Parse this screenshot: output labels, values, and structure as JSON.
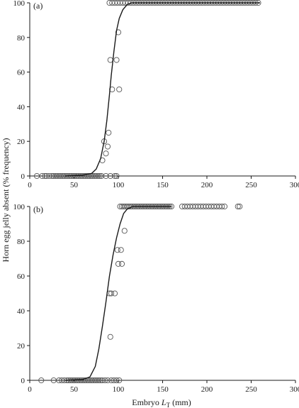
{
  "figure": {
    "ylabel": "Horn egg jelly absent (% frequency)",
    "xlabel_main": "Embryo ",
    "xlabel_italic": "L",
    "xlabel_sub": "T",
    "xlabel_unit": " (mm)"
  },
  "chart_data": [
    {
      "type": "scatter",
      "panel_label": "(a)",
      "xlim": [
        0,
        300
      ],
      "ylim": [
        0,
        100
      ],
      "x_ticks": [
        0,
        50,
        100,
        150,
        200,
        250,
        300
      ],
      "y_ticks": [
        0,
        20,
        40,
        60,
        80,
        100
      ],
      "x_tick_labels": [
        "0",
        "50",
        "100",
        "150",
        "200",
        "250",
        "300"
      ],
      "y_tick_labels": [
        "0",
        "20",
        "40",
        "60",
        "80",
        "100"
      ],
      "grid": false,
      "marker": "open-circle",
      "colors": {
        "marker_edge": "#555555",
        "curve": "#1a1a1a",
        "axis": "#1a1a1a"
      },
      "points": [
        [
          8,
          0
        ],
        [
          14,
          0
        ],
        [
          17,
          0
        ],
        [
          19,
          0
        ],
        [
          22,
          0
        ],
        [
          25,
          0
        ],
        [
          27,
          0
        ],
        [
          29,
          0
        ],
        [
          31,
          0
        ],
        [
          33,
          0
        ],
        [
          35,
          0
        ],
        [
          37,
          0
        ],
        [
          39,
          0
        ],
        [
          41,
          0
        ],
        [
          43,
          0
        ],
        [
          45,
          0
        ],
        [
          47,
          0
        ],
        [
          49,
          0
        ],
        [
          51,
          0
        ],
        [
          53,
          0
        ],
        [
          55,
          0
        ],
        [
          57,
          0
        ],
        [
          59,
          0
        ],
        [
          61,
          0
        ],
        [
          63,
          0
        ],
        [
          65,
          0
        ],
        [
          67,
          0
        ],
        [
          69,
          0
        ],
        [
          71,
          0
        ],
        [
          73,
          0
        ],
        [
          75,
          0
        ],
        [
          77,
          0
        ],
        [
          79,
          0
        ],
        [
          81,
          0
        ],
        [
          86,
          0
        ],
        [
          91,
          0
        ],
        [
          96,
          0
        ],
        [
          98,
          0
        ],
        [
          82,
          9
        ],
        [
          86,
          13
        ],
        [
          84,
          20
        ],
        [
          88,
          17
        ],
        [
          89,
          25
        ],
        [
          91,
          67
        ],
        [
          93,
          50
        ],
        [
          98,
          67
        ],
        [
          101,
          50
        ],
        [
          100,
          83
        ],
        [
          90,
          100
        ],
        [
          93,
          100
        ],
        [
          96,
          100
        ],
        [
          99,
          100
        ],
        [
          102,
          100
        ],
        [
          105,
          100
        ],
        [
          108,
          100
        ],
        [
          111,
          100
        ],
        [
          114,
          100
        ],
        [
          117,
          100
        ],
        [
          120,
          100
        ],
        [
          123,
          100
        ],
        [
          126,
          100
        ],
        [
          129,
          100
        ],
        [
          132,
          100
        ],
        [
          135,
          100
        ],
        [
          138,
          100
        ],
        [
          141,
          100
        ],
        [
          144,
          100
        ],
        [
          147,
          100
        ],
        [
          150,
          100
        ],
        [
          153,
          100
        ],
        [
          156,
          100
        ],
        [
          159,
          100
        ],
        [
          162,
          100
        ],
        [
          165,
          100
        ],
        [
          168,
          100
        ],
        [
          171,
          100
        ],
        [
          174,
          100
        ],
        [
          177,
          100
        ],
        [
          180,
          100
        ],
        [
          183,
          100
        ],
        [
          186,
          100
        ],
        [
          189,
          100
        ],
        [
          192,
          100
        ],
        [
          195,
          100
        ],
        [
          198,
          100
        ],
        [
          201,
          100
        ],
        [
          204,
          100
        ],
        [
          207,
          100
        ],
        [
          210,
          100
        ],
        [
          213,
          100
        ],
        [
          216,
          100
        ],
        [
          219,
          100
        ],
        [
          222,
          100
        ],
        [
          225,
          100
        ],
        [
          228,
          100
        ],
        [
          231,
          100
        ],
        [
          234,
          100
        ],
        [
          237,
          100
        ],
        [
          240,
          100
        ],
        [
          243,
          100
        ],
        [
          246,
          100
        ],
        [
          249,
          100
        ],
        [
          252,
          100
        ],
        [
          255,
          100
        ],
        [
          258,
          100
        ]
      ],
      "curve": [
        [
          40,
          0
        ],
        [
          60,
          0.5
        ],
        [
          70,
          1.5
        ],
        [
          75,
          4
        ],
        [
          80,
          10
        ],
        [
          84,
          20
        ],
        [
          87,
          32
        ],
        [
          90,
          47
        ],
        [
          92,
          58
        ],
        [
          95,
          72
        ],
        [
          98,
          84
        ],
        [
          101,
          91
        ],
        [
          105,
          96
        ],
        [
          110,
          99
        ],
        [
          115,
          100
        ],
        [
          260,
          100
        ]
      ]
    },
    {
      "type": "scatter",
      "panel_label": "(b)",
      "xlim": [
        0,
        300
      ],
      "ylim": [
        0,
        100
      ],
      "x_ticks": [
        0,
        50,
        100,
        150,
        200,
        250,
        300
      ],
      "y_ticks": [
        0,
        20,
        40,
        60,
        80,
        100
      ],
      "x_tick_labels": [
        "0",
        "50",
        "100",
        "150",
        "200",
        "250",
        "300"
      ],
      "y_tick_labels": [
        "0",
        "20",
        "40",
        "60",
        "80",
        "100"
      ],
      "grid": false,
      "marker": "open-circle",
      "colors": {
        "marker_edge": "#555555",
        "curve": "#1a1a1a",
        "axis": "#1a1a1a"
      },
      "points": [
        [
          13,
          0
        ],
        [
          27,
          0
        ],
        [
          33,
          0
        ],
        [
          36,
          0
        ],
        [
          39,
          0
        ],
        [
          42,
          0
        ],
        [
          44,
          0
        ],
        [
          46,
          0
        ],
        [
          48,
          0
        ],
        [
          50,
          0
        ],
        [
          52,
          0
        ],
        [
          54,
          0
        ],
        [
          56,
          0
        ],
        [
          58,
          0
        ],
        [
          60,
          0
        ],
        [
          62,
          0
        ],
        [
          64,
          0
        ],
        [
          66,
          0
        ],
        [
          68,
          0
        ],
        [
          70,
          0
        ],
        [
          72,
          0
        ],
        [
          74,
          0
        ],
        [
          76,
          0
        ],
        [
          78,
          0
        ],
        [
          80,
          0
        ],
        [
          82,
          0
        ],
        [
          85,
          0
        ],
        [
          88,
          0
        ],
        [
          92,
          0
        ],
        [
          95,
          0
        ],
        [
          98,
          0
        ],
        [
          101,
          0
        ],
        [
          91,
          25
        ],
        [
          90,
          50
        ],
        [
          92,
          50
        ],
        [
          96,
          50
        ],
        [
          99,
          75
        ],
        [
          100,
          67
        ],
        [
          103,
          75
        ],
        [
          104,
          67
        ],
        [
          107,
          86
        ],
        [
          102,
          100
        ],
        [
          104,
          100
        ],
        [
          106,
          100
        ],
        [
          108,
          100
        ],
        [
          110,
          100
        ],
        [
          112,
          100
        ],
        [
          114,
          100
        ],
        [
          116,
          100
        ],
        [
          118,
          100
        ],
        [
          120,
          100
        ],
        [
          122,
          100
        ],
        [
          124,
          100
        ],
        [
          126,
          100
        ],
        [
          128,
          100
        ],
        [
          130,
          100
        ],
        [
          132,
          100
        ],
        [
          134,
          100
        ],
        [
          136,
          100
        ],
        [
          138,
          100
        ],
        [
          140,
          100
        ],
        [
          142,
          100
        ],
        [
          144,
          100
        ],
        [
          146,
          100
        ],
        [
          148,
          100
        ],
        [
          150,
          100
        ],
        [
          152,
          100
        ],
        [
          154,
          100
        ],
        [
          156,
          100
        ],
        [
          158,
          100
        ],
        [
          160,
          100
        ],
        [
          172,
          100
        ],
        [
          175,
          100
        ],
        [
          178,
          100
        ],
        [
          181,
          100
        ],
        [
          184,
          100
        ],
        [
          187,
          100
        ],
        [
          190,
          100
        ],
        [
          193,
          100
        ],
        [
          196,
          100
        ],
        [
          199,
          100
        ],
        [
          202,
          100
        ],
        [
          205,
          100
        ],
        [
          208,
          100
        ],
        [
          211,
          100
        ],
        [
          214,
          100
        ],
        [
          217,
          100
        ],
        [
          220,
          100
        ],
        [
          235,
          100
        ],
        [
          237,
          100
        ]
      ],
      "curve": [
        [
          40,
          0
        ],
        [
          60,
          0.5
        ],
        [
          68,
          2
        ],
        [
          74,
          8
        ],
        [
          78,
          18
        ],
        [
          82,
          31
        ],
        [
          86,
          45
        ],
        [
          90,
          60
        ],
        [
          94,
          72
        ],
        [
          98,
          82
        ],
        [
          102,
          90
        ],
        [
          106,
          96
        ],
        [
          110,
          98.5
        ],
        [
          116,
          100
        ],
        [
          160,
          100
        ]
      ]
    }
  ]
}
